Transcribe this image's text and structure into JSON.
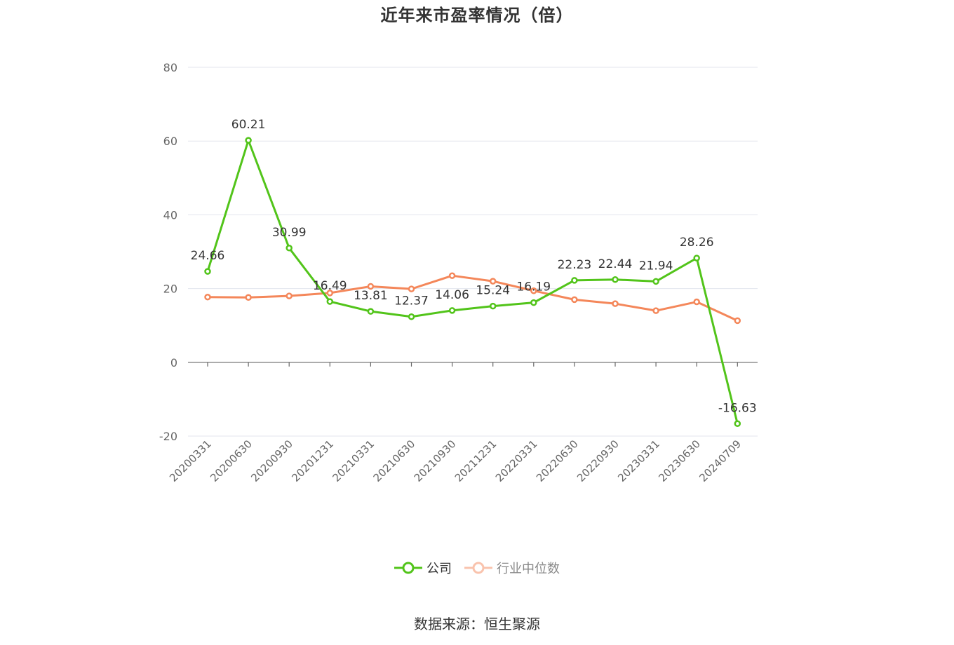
{
  "chart_data": {
    "type": "line",
    "title": "近年来市盈率情况（倍）",
    "categories": [
      "20200331",
      "20200630",
      "20200930",
      "20201231",
      "20210331",
      "20210630",
      "20210930",
      "20211231",
      "20220331",
      "20220630",
      "20220930",
      "20230331",
      "20230630",
      "20240709"
    ],
    "ylim": [
      -20,
      80
    ],
    "yticks": [
      -20,
      0,
      20,
      40,
      60,
      80
    ],
    "grid": true,
    "legend_position": "bottom",
    "series": [
      {
        "name": "公司",
        "color": "#52c41a",
        "values": [
          24.66,
          60.21,
          30.99,
          16.49,
          13.81,
          12.37,
          14.06,
          15.24,
          16.19,
          22.23,
          22.44,
          21.94,
          28.26,
          -16.63
        ],
        "labels": [
          "24.66",
          "60.21",
          "30.99",
          "16.49",
          "13.81",
          "12.37",
          "14.06",
          "15.24",
          "16.19",
          "22.23",
          "22.44",
          "21.94",
          "28.26",
          "-16.63"
        ]
      },
      {
        "name": "行业中位数",
        "color": "#f4875a",
        "values": [
          17.7,
          17.6,
          18.0,
          18.8,
          20.6,
          19.9,
          23.5,
          22.0,
          19.4,
          17.0,
          15.9,
          14.0,
          16.4,
          11.3
        ]
      }
    ]
  },
  "source": "数据来源：恒生聚源"
}
